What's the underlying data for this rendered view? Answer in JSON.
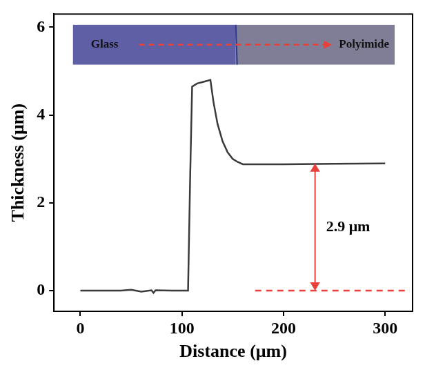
{
  "chart_data": {
    "type": "line",
    "x_label": "Distance (μm)",
    "y_label": "Thickness (μm)",
    "x": [
      0,
      40,
      50,
      60,
      70,
      72,
      74,
      90,
      106,
      108,
      110,
      115,
      120,
      128,
      131,
      135,
      140,
      145,
      150,
      155,
      160,
      200,
      250,
      300
    ],
    "values": [
      0,
      0,
      0.02,
      -0.02,
      0.01,
      -0.05,
      0.01,
      0,
      0,
      2.5,
      4.65,
      4.72,
      4.75,
      4.8,
      4.3,
      3.8,
      3.4,
      3.15,
      3.0,
      2.93,
      2.88,
      2.88,
      2.89,
      2.9
    ],
    "color": "#3a3a3a",
    "xlim": [
      -26,
      327
    ],
    "ylim": [
      -0.47,
      6.3
    ],
    "xticks": [
      0,
      100,
      200,
      300
    ],
    "yticks": [
      0,
      2,
      4,
      6
    ],
    "grid": false,
    "inset": {
      "left_text": "Glass",
      "right_text": "Polyimide"
    },
    "annotation": {
      "text": "2.9 μm",
      "x": 231,
      "y_from": 0,
      "y_to": 2.9,
      "color": "#e8413c"
    },
    "reference_line": {
      "y": 0,
      "x_from": 172,
      "color": "#e8413c",
      "line_style": "dashed"
    }
  }
}
